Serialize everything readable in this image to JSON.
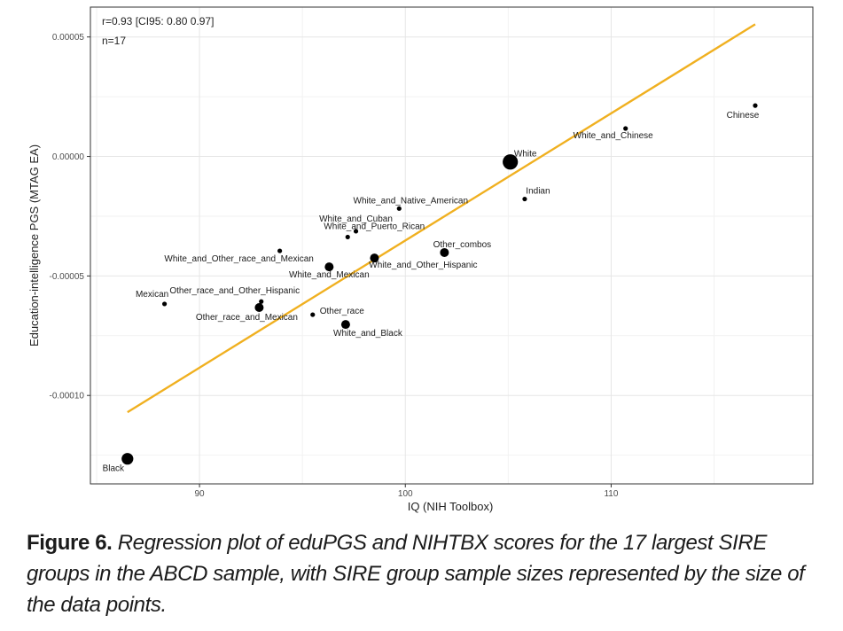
{
  "caption": {
    "label": "Figure 6.",
    "text": "Regression plot of eduPGS and NIHTBX scores for the 17 largest SIRE groups in the ABCD sample, with SIRE group sample sizes represented by the size of the data points."
  },
  "chart_data": {
    "type": "scatter",
    "xlabel": "IQ (NIH Toolbox)",
    "ylabel": "Education-intelligence PGS (MTAG EA)",
    "xlim": [
      84.7,
      119.8
    ],
    "ylim": [
      -0.000137,
      6.25e-05
    ],
    "x_ticks": [
      90,
      100,
      110
    ],
    "x_tick_labels": [
      "90",
      "100",
      "110"
    ],
    "y_ticks": [
      5e-05,
      0.0,
      -5e-05,
      -0.0001
    ],
    "y_tick_labels": [
      "0.00005",
      "0.00000",
      "-0.00005",
      "-0.00010"
    ],
    "grid": true,
    "annotations": [
      "r=0.93 [CI95: 0.80 0.97]",
      "n=17"
    ],
    "regression_line": {
      "color": "#f0b020",
      "x": [
        86.5,
        117.0
      ],
      "y": [
        -0.000107,
        5.53e-05
      ]
    },
    "point_color": "#000000",
    "points": [
      {
        "label": "Black",
        "x": 86.5,
        "y": -0.0001265,
        "size": "large"
      },
      {
        "label": "Mexican",
        "x": 88.3,
        "y": -6.17e-05,
        "size": "small"
      },
      {
        "label": "Other_race_and_Other_Hispanic",
        "x": 93.0,
        "y": -6.07e-05,
        "size": "small"
      },
      {
        "label": "Other_race_and_Mexican",
        "x": 92.9,
        "y": -6.32e-05,
        "size": "medium"
      },
      {
        "label": "White_and_Other_race_and_Mexican",
        "x": 93.9,
        "y": -3.95e-05,
        "size": "small"
      },
      {
        "label": "Other_race",
        "x": 95.5,
        "y": -6.62e-05,
        "size": "small"
      },
      {
        "label": "White_and_Mexican",
        "x": 96.3,
        "y": -4.62e-05,
        "size": "medium"
      },
      {
        "label": "White_and_Black",
        "x": 97.1,
        "y": -7.03e-05,
        "size": "medium"
      },
      {
        "label": "White_and_Puerto_Rican",
        "x": 97.2,
        "y": -3.37e-05,
        "size": "small"
      },
      {
        "label": "White_and_Cuban",
        "x": 97.6,
        "y": -3.13e-05,
        "size": "small"
      },
      {
        "label": "White_and_Other_Hispanic",
        "x": 98.5,
        "y": -4.25e-05,
        "size": "medium"
      },
      {
        "label": "White_and_Native_American",
        "x": 99.7,
        "y": -2.18e-05,
        "size": "small"
      },
      {
        "label": "Other_combos",
        "x": 101.9,
        "y": -4.02e-05,
        "size": "medium"
      },
      {
        "label": "White",
        "x": 105.1,
        "y": -2.3e-06,
        "size": "xlarge"
      },
      {
        "label": "Indian",
        "x": 105.8,
        "y": -1.78e-05,
        "size": "small"
      },
      {
        "label": "White_and_Chinese",
        "x": 110.7,
        "y": 1.17e-05,
        "size": "small"
      },
      {
        "label": "Chinese",
        "x": 117.0,
        "y": 2.13e-05,
        "size": "small"
      }
    ]
  }
}
